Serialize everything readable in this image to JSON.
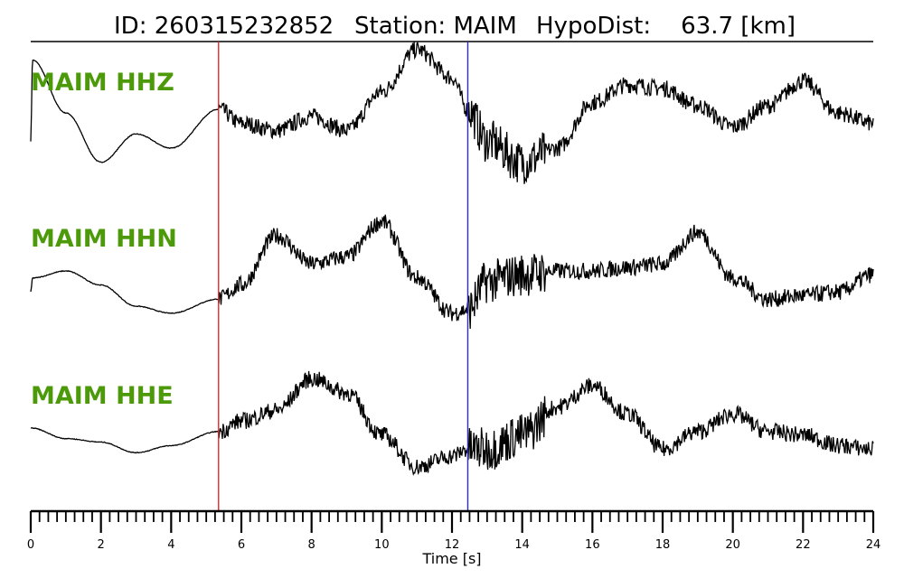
{
  "header": {
    "id_text": "ID: 260315232852",
    "station_text": "Station: MAIM",
    "hypodist_text": "HypoDist:    63.7 [km]"
  },
  "colors": {
    "label": "#4c9a0a",
    "trace": "#000000",
    "p_pick": "#e8262b",
    "s_pick": "#2b2bcf"
  },
  "chart_data": {
    "type": "line",
    "title": "ID: 260315232852   Station: MAIM   HypoDist:    63.7 [km]",
    "xlabel": "Time [s]",
    "xlim": [
      0,
      24
    ],
    "xticks": [
      0,
      2,
      4,
      6,
      8,
      10,
      12,
      14,
      16,
      18,
      20,
      22,
      24
    ],
    "minor_tick_step": 0.25,
    "grid": false,
    "picks": [
      {
        "phase": "P",
        "time": 5.35,
        "color": "#e8262b"
      },
      {
        "phase": "S",
        "time": 12.45,
        "color": "#2b2bcf"
      }
    ],
    "series": [
      {
        "name": "MAIM HHZ",
        "x": [
          0,
          0.05,
          1,
          2,
          3,
          4,
          5.35,
          6,
          7,
          8,
          9,
          10,
          11,
          12,
          12.45,
          13,
          14,
          15,
          16,
          17,
          18,
          19,
          20,
          21,
          22,
          23,
          24
        ],
        "y": [
          -0.4,
          0.75,
          0.0,
          -0.7,
          -0.3,
          -0.5,
          0.05,
          -0.15,
          -0.25,
          -0.05,
          -0.25,
          0.3,
          0.9,
          0.5,
          0.05,
          -0.4,
          -0.7,
          -0.5,
          0.15,
          0.4,
          0.35,
          0.1,
          -0.2,
          0.1,
          0.45,
          0.0,
          -0.15
        ],
        "noise_after_p": 0.12
      },
      {
        "name": "MAIM HHN",
        "x": [
          0,
          0.05,
          1,
          2,
          3,
          4,
          5.35,
          6,
          7,
          8,
          9,
          10,
          11,
          12,
          12.45,
          13,
          14,
          15,
          16,
          17,
          18,
          19,
          20,
          21,
          22,
          23,
          24
        ],
        "y": [
          -0.3,
          -0.1,
          0.0,
          -0.2,
          -0.5,
          -0.6,
          -0.4,
          -0.2,
          0.5,
          0.1,
          0.2,
          0.7,
          -0.1,
          -0.6,
          -0.55,
          -0.15,
          -0.05,
          0.0,
          0.0,
          0.05,
          0.1,
          0.55,
          -0.1,
          -0.4,
          -0.35,
          -0.3,
          -0.05
        ],
        "noise_after_p": 0.12
      },
      {
        "name": "MAIM HHE",
        "x": [
          0,
          1,
          2,
          3,
          4,
          5.35,
          6,
          7,
          8,
          9,
          10,
          11,
          12,
          12.45,
          13,
          14,
          15,
          16,
          17,
          18,
          19,
          20,
          21,
          22,
          23,
          24
        ],
        "y": [
          -0.05,
          -0.2,
          -0.25,
          -0.4,
          -0.3,
          -0.1,
          0.05,
          0.2,
          0.65,
          0.45,
          -0.15,
          -0.6,
          -0.45,
          -0.35,
          -0.35,
          -0.15,
          0.25,
          0.55,
          0.15,
          -0.35,
          -0.1,
          0.15,
          -0.1,
          -0.15,
          -0.3,
          -0.35
        ],
        "noise_after_p": 0.12
      }
    ]
  }
}
